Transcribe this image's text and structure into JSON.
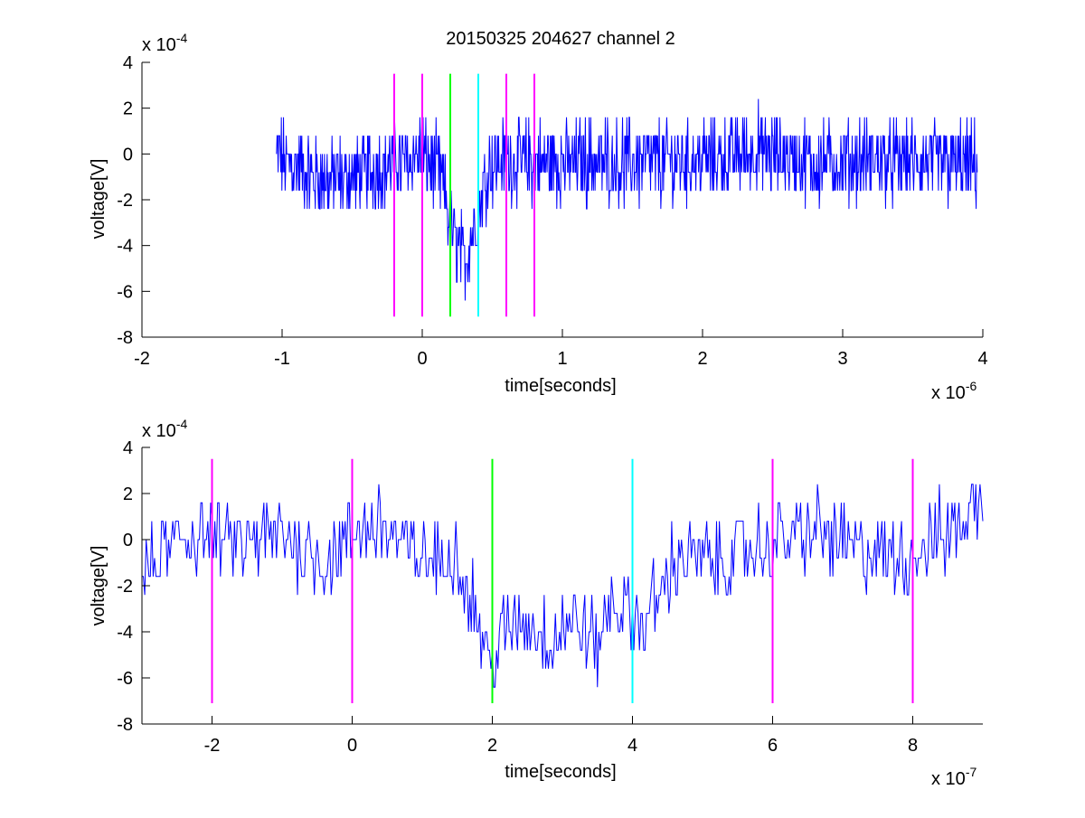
{
  "figure": {
    "background": "#ffffff",
    "colors": {
      "signal": "#0000ff",
      "magenta": "#ff00ff",
      "green": "#00ff00",
      "cyan": "#00ffff",
      "axis": "#000000"
    }
  },
  "chart_data": [
    {
      "type": "line",
      "title": "20150325 204627 channel 2",
      "xlabel": "time[seconds]",
      "ylabel": "voltage[V]",
      "x_exponent_label": "x 10",
      "x_exponent": "-6",
      "y_exponent_label": "x 10",
      "y_exponent": "-4",
      "xlim": [
        -2,
        4
      ],
      "ylim": [
        -8,
        4
      ],
      "xticks": [
        -2,
        -1,
        0,
        1,
        2,
        3,
        4
      ],
      "xtick_labels": [
        "-2",
        "-1",
        "0",
        "1",
        "2",
        "3",
        "4"
      ],
      "yticks": [
        -8,
        -6,
        -4,
        -2,
        0,
        2,
        4
      ],
      "ytick_labels": [
        "-8",
        "-6",
        "-4",
        "-2",
        "0",
        "2",
        "4"
      ],
      "grid": false,
      "series": [
        {
          "color": "#0000ff",
          "x_range": [
            -1.04,
            3.96
          ],
          "description_points": [
            [
              -1.04,
              0
            ],
            [
              -0.9,
              -0.6
            ],
            [
              -0.7,
              -1.2
            ],
            [
              -0.5,
              -1.0
            ],
            [
              -0.3,
              -0.6
            ],
            [
              -0.1,
              -0.2
            ],
            [
              0.0,
              0.0
            ],
            [
              0.1,
              -0.6
            ],
            [
              0.15,
              -1.4
            ],
            [
              0.2,
              -3.0
            ],
            [
              0.25,
              -4.2
            ],
            [
              0.3,
              -4.6
            ],
            [
              0.35,
              -3.6
            ],
            [
              0.4,
              -2.6
            ],
            [
              0.45,
              -1.0
            ],
            [
              0.5,
              -0.4
            ],
            [
              0.7,
              -0.3
            ],
            [
              1.0,
              -0.4
            ],
            [
              1.2,
              -0.3
            ],
            [
              1.5,
              -0.4
            ],
            [
              2.0,
              -0.3
            ],
            [
              2.4,
              0.2
            ],
            [
              2.8,
              -0.4
            ],
            [
              3.2,
              -0.3
            ],
            [
              3.5,
              -0.3
            ],
            [
              3.96,
              -0.5
            ]
          ]
        }
      ],
      "vlines": [
        {
          "x": -0.2,
          "color": "#ff00ff",
          "ymin": -7.1,
          "ymax": 3.5
        },
        {
          "x": 0.0,
          "color": "#ff00ff",
          "ymin": -7.1,
          "ymax": 3.5
        },
        {
          "x": 0.2,
          "color": "#00ff00",
          "ymin": -7.1,
          "ymax": 3.5
        },
        {
          "x": 0.4,
          "color": "#00ffff",
          "ymin": -7.1,
          "ymax": 3.5
        },
        {
          "x": 0.6,
          "color": "#ff00ff",
          "ymin": -7.1,
          "ymax": 3.5
        },
        {
          "x": 0.8,
          "color": "#ff00ff",
          "ymin": -7.1,
          "ymax": 3.5
        }
      ]
    },
    {
      "type": "line",
      "title": "",
      "xlabel": "time[seconds]",
      "ylabel": "voltage[V]",
      "x_exponent_label": "x 10",
      "x_exponent": "-7",
      "y_exponent_label": "x 10",
      "y_exponent": "-4",
      "xlim": [
        -3,
        9
      ],
      "ylim": [
        -8,
        4
      ],
      "xticks": [
        -2,
        0,
        2,
        4,
        6,
        8
      ],
      "xtick_labels": [
        "-2",
        "0",
        "2",
        "4",
        "6",
        "8"
      ],
      "yticks": [
        -8,
        -6,
        -4,
        -2,
        0,
        2,
        4
      ],
      "ytick_labels": [
        "-8",
        "-6",
        "-4",
        "-2",
        "0",
        "2",
        "4"
      ],
      "grid": false,
      "series": [
        {
          "color": "#0000ff",
          "x_range": [
            -3,
            9
          ],
          "description_points": [
            [
              -3.0,
              -1.6
            ],
            [
              -2.6,
              -0.4
            ],
            [
              -2.2,
              0.4
            ],
            [
              -1.6,
              -0.3
            ],
            [
              -1.0,
              0.2
            ],
            [
              -0.4,
              -1.0
            ],
            [
              0.0,
              0.2
            ],
            [
              0.4,
              0.8
            ],
            [
              0.8,
              -0.6
            ],
            [
              1.2,
              -1.0
            ],
            [
              1.5,
              -0.5
            ],
            [
              1.6,
              -1.8
            ],
            [
              1.8,
              -3.4
            ],
            [
              2.0,
              -5.6
            ],
            [
              2.1,
              -4.2
            ],
            [
              2.4,
              -3.6
            ],
            [
              2.8,
              -4.2
            ],
            [
              3.2,
              -3.6
            ],
            [
              3.5,
              -4.6
            ],
            [
              3.7,
              -2.6
            ],
            [
              4.0,
              -3.2
            ],
            [
              4.2,
              -3.6
            ],
            [
              4.4,
              -2.2
            ],
            [
              4.7,
              -0.6
            ],
            [
              5.2,
              -1.0
            ],
            [
              5.6,
              -0.6
            ],
            [
              6.0,
              -0.2
            ],
            [
              6.6,
              0.4
            ],
            [
              7.2,
              -0.4
            ],
            [
              7.8,
              -0.8
            ],
            [
              8.2,
              -0.4
            ],
            [
              8.6,
              0.6
            ],
            [
              9.0,
              1.6
            ]
          ]
        }
      ],
      "vlines": [
        {
          "x": -2,
          "color": "#ff00ff",
          "ymin": -7.1,
          "ymax": 3.5
        },
        {
          "x": 0,
          "color": "#ff00ff",
          "ymin": -7.1,
          "ymax": 3.5
        },
        {
          "x": 2,
          "color": "#00ff00",
          "ymin": -7.1,
          "ymax": 3.5
        },
        {
          "x": 4,
          "color": "#00ffff",
          "ymin": -7.1,
          "ymax": 3.5
        },
        {
          "x": 6,
          "color": "#ff00ff",
          "ymin": -7.1,
          "ymax": 3.5
        },
        {
          "x": 8,
          "color": "#ff00ff",
          "ymin": -7.1,
          "ymax": 3.5
        }
      ]
    }
  ]
}
